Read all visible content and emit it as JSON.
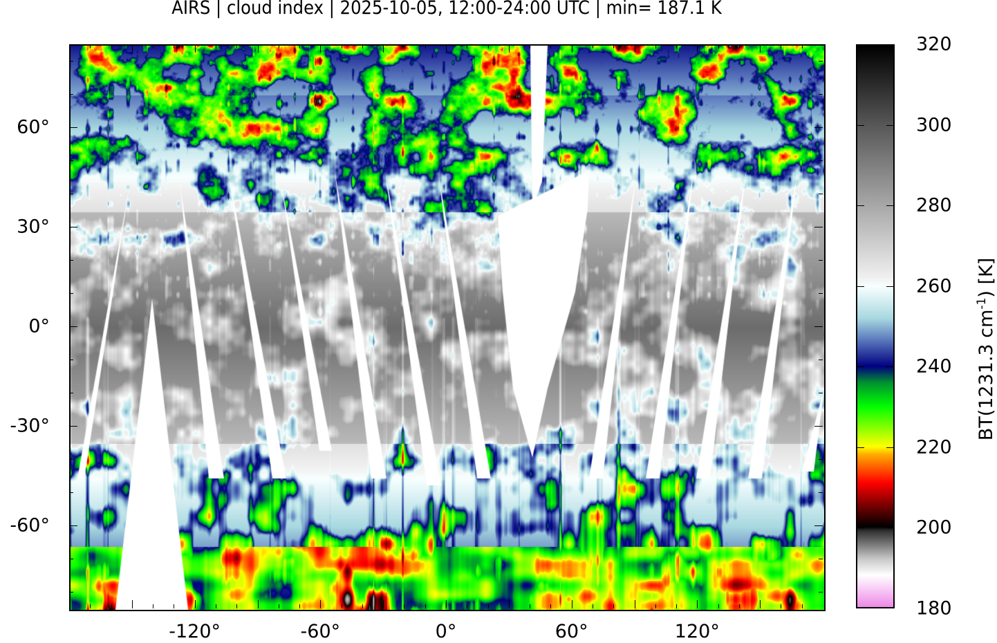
{
  "title": "AIRS | cloud index | 2025-10-05, 12:00-24:00 UTC | min= 187.1 K",
  "map": {
    "projection": "equirectangular",
    "lon_range": [
      -180,
      180
    ],
    "lat_range": [
      -85,
      85
    ],
    "lat_ticks": [
      {
        "value": 60,
        "label": "60°"
      },
      {
        "value": 30,
        "label": "30°"
      },
      {
        "value": 0,
        "label": "0°"
      },
      {
        "value": -30,
        "label": "-30°"
      },
      {
        "value": -60,
        "label": "-60°"
      }
    ],
    "lon_ticks": [
      {
        "value": -120,
        "label": "-120°"
      },
      {
        "value": -60,
        "label": "-60°"
      },
      {
        "value": 0,
        "label": "0°"
      },
      {
        "value": 60,
        "label": "60°"
      },
      {
        "value": 120,
        "label": "120°"
      }
    ],
    "no_data_color": "#ffffff"
  },
  "colorbar": {
    "label_main": "BT(1231.3 cm",
    "label_sup": "-1",
    "label_end": ") [K]",
    "range": [
      180,
      320
    ],
    "ticks": [
      {
        "value": 320,
        "label": "320"
      },
      {
        "value": 300,
        "label": "300"
      },
      {
        "value": 280,
        "label": "280"
      },
      {
        "value": 260,
        "label": "260"
      },
      {
        "value": 240,
        "label": "240"
      },
      {
        "value": 220,
        "label": "220"
      },
      {
        "value": 200,
        "label": "200"
      },
      {
        "value": 180,
        "label": "180"
      }
    ],
    "stops": [
      {
        "value": 180,
        "color": "#ee88e8"
      },
      {
        "value": 188,
        "color": "#ffffff"
      },
      {
        "value": 192,
        "color": "#c8c8c8"
      },
      {
        "value": 199,
        "color": "#303030"
      },
      {
        "value": 200,
        "color": "#000000"
      },
      {
        "value": 205,
        "color": "#700000"
      },
      {
        "value": 211,
        "color": "#ff0000"
      },
      {
        "value": 218,
        "color": "#ffaa00"
      },
      {
        "value": 220,
        "color": "#ffff00"
      },
      {
        "value": 230,
        "color": "#00ff00"
      },
      {
        "value": 236,
        "color": "#009030"
      },
      {
        "value": 240,
        "color": "#000080"
      },
      {
        "value": 247,
        "color": "#6080c0"
      },
      {
        "value": 252,
        "color": "#a8d8e0"
      },
      {
        "value": 260,
        "color": "#f8ffff"
      },
      {
        "value": 262,
        "color": "#f0f0f0"
      },
      {
        "value": 280,
        "color": "#a8a8a8"
      },
      {
        "value": 300,
        "color": "#585858"
      },
      {
        "value": 320,
        "color": "#000000"
      }
    ]
  }
}
